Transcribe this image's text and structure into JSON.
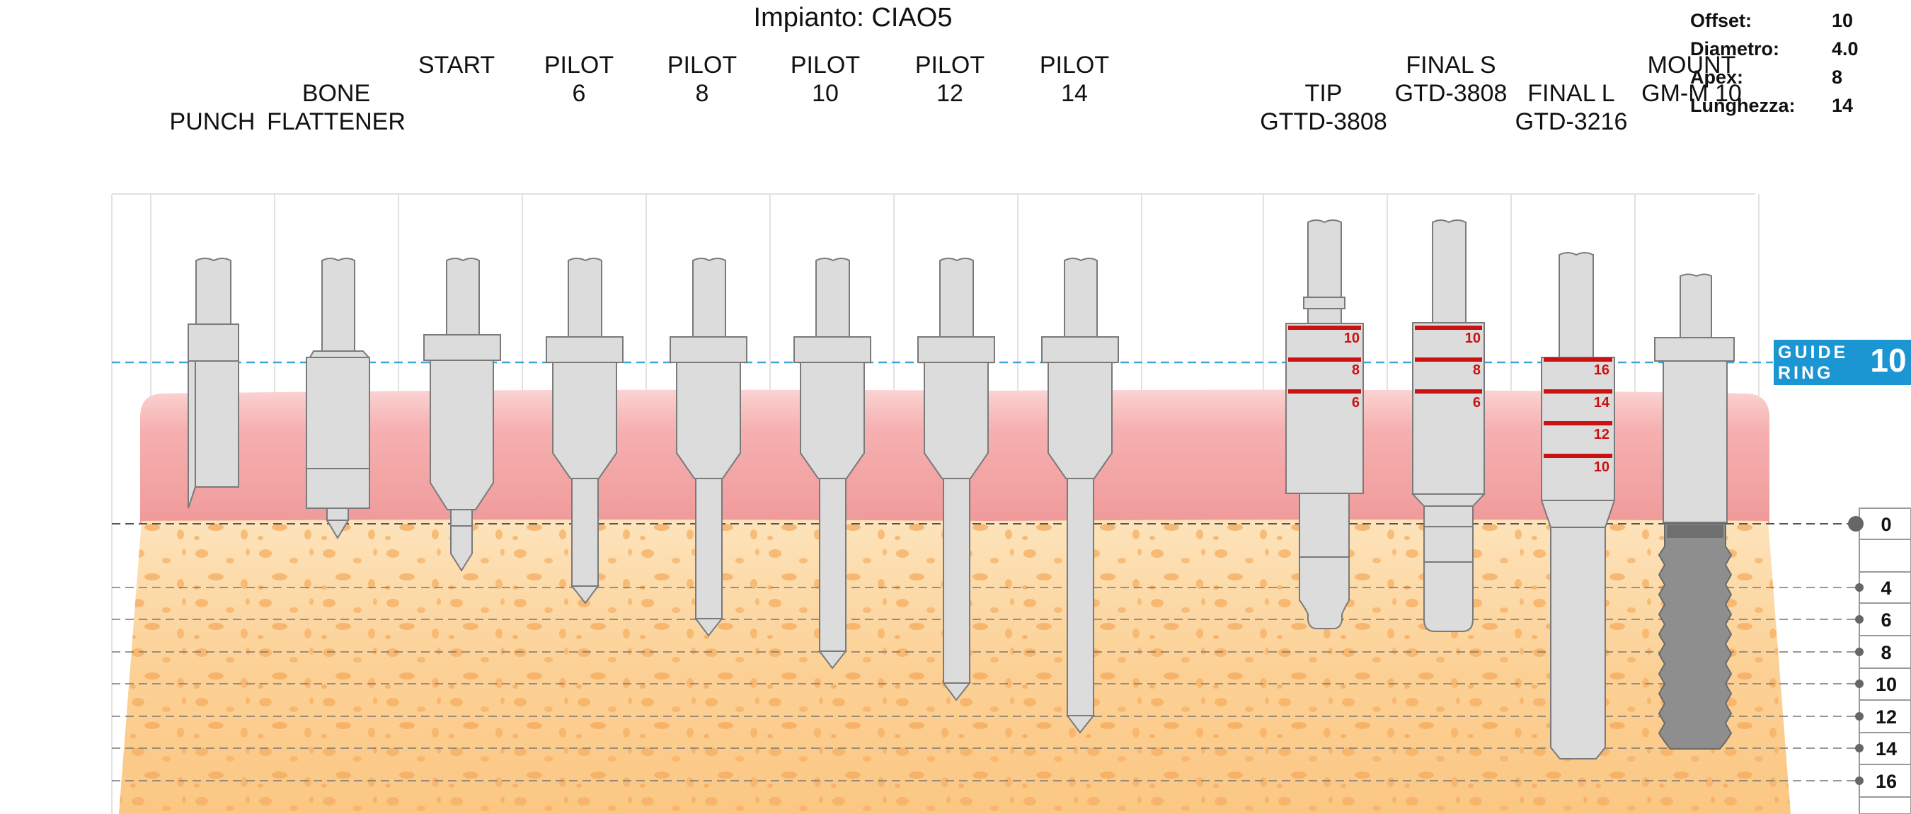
{
  "title": "Impianto: CIAO5",
  "info": [
    {
      "label": "Offset:",
      "value": "10"
    },
    {
      "label": "Diametro:",
      "value": "4.0"
    },
    {
      "label": "Apex:",
      "value": "8"
    },
    {
      "label": "Lunghezza:",
      "value": "14"
    }
  ],
  "columns": [
    {
      "line1": "",
      "line2": "PUNCH"
    },
    {
      "line1": "BONE",
      "line2": "FLATTENER"
    },
    {
      "line1": "START",
      "line2": ""
    },
    {
      "line1": "PILOT",
      "line2": "6"
    },
    {
      "line1": "PILOT",
      "line2": "8"
    },
    {
      "line1": "PILOT",
      "line2": "10"
    },
    {
      "line1": "PILOT",
      "line2": "12"
    },
    {
      "line1": "PILOT",
      "line2": "14"
    },
    {
      "line1": "TIP",
      "line2": "GTTD-3808"
    },
    {
      "line1": "FINAL  S",
      "line2": "GTD-3808"
    },
    {
      "line1": "FINAL  L",
      "line2": "GTD-3216"
    },
    {
      "line1": "MOUNT",
      "line2": "GM-M 10"
    }
  ],
  "guide_ring": {
    "line1": "GUIDE",
    "line2": "RING",
    "value": "10"
  },
  "depth_scale": [
    "0",
    "4",
    "6",
    "8",
    "10",
    "12",
    "14",
    "16"
  ],
  "tool_marks": {
    "tip": [
      "10",
      "8",
      "6"
    ],
    "final_s": [
      "10",
      "8",
      "6"
    ],
    "final_l": [
      "16",
      "14",
      "12",
      "10"
    ]
  },
  "colors": {
    "gum": "#f09a9a",
    "bone": "#fbc783",
    "tool": "#dcdcdc",
    "implant": "#8e8e8e",
    "guide_ring": "#1c95d3",
    "depth_mark": "#cc1111"
  }
}
